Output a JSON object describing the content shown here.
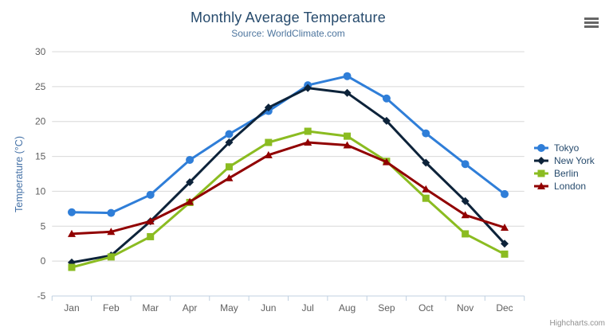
{
  "credits": "Highcharts.com",
  "export_menu": {
    "icon": "hamburger-icon"
  },
  "colors": {
    "title": "#274b6d",
    "subtitle": "#4d759e",
    "axis_title": "#4572a7",
    "axis_labels": "#606060",
    "gridline": "#d8d8d8",
    "axis_line": "#c0d0e0",
    "legend_text": "#274b6d",
    "credits_text": "#909090"
  },
  "chart_data": {
    "type": "line",
    "title": "Monthly Average Temperature",
    "subtitle": "Source: WorldClimate.com",
    "xlabel": "",
    "ylabel": "Temperature (°C)",
    "ylim": [
      -5,
      30
    ],
    "ytick_interval": 5,
    "grid": true,
    "legend_position": "right",
    "categories": [
      "Jan",
      "Feb",
      "Mar",
      "Apr",
      "May",
      "Jun",
      "Jul",
      "Aug",
      "Sep",
      "Oct",
      "Nov",
      "Dec"
    ],
    "series": [
      {
        "name": "Tokyo",
        "color": "#2f7ed8",
        "marker": "circle",
        "values": [
          7.0,
          6.9,
          9.5,
          14.5,
          18.2,
          21.5,
          25.2,
          26.5,
          23.3,
          18.3,
          13.9,
          9.6
        ]
      },
      {
        "name": "New York",
        "color": "#0d233a",
        "marker": "diamond",
        "values": [
          -0.2,
          0.8,
          5.7,
          11.3,
          17.0,
          22.0,
          24.8,
          24.1,
          20.1,
          14.1,
          8.6,
          2.5
        ]
      },
      {
        "name": "Berlin",
        "color": "#8bbc21",
        "marker": "square",
        "values": [
          -0.9,
          0.6,
          3.5,
          8.4,
          13.5,
          17.0,
          18.6,
          17.9,
          14.3,
          9.0,
          3.9,
          1.0
        ]
      },
      {
        "name": "London",
        "color": "#910000",
        "marker": "triangle",
        "values": [
          3.9,
          4.2,
          5.7,
          8.5,
          11.9,
          15.2,
          17.0,
          16.6,
          14.2,
          10.3,
          6.6,
          4.8
        ]
      }
    ]
  }
}
